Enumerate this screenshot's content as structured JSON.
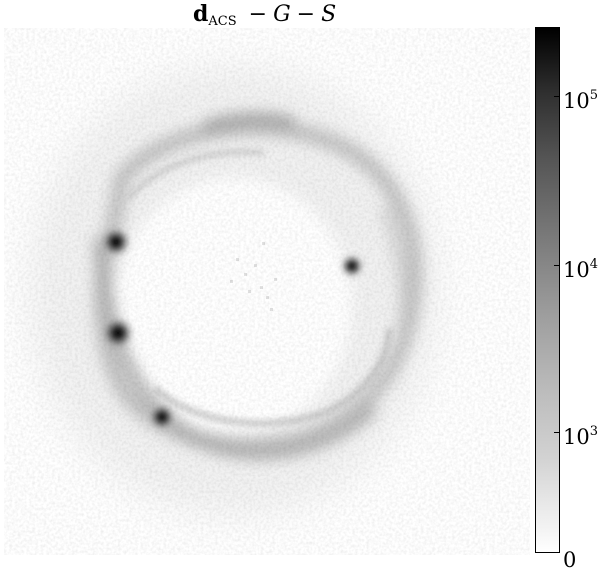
{
  "figure": {
    "title": {
      "bold_part": "d",
      "subscript": "ACS",
      "operator_1": "−",
      "term_1": "G",
      "operator_2": "−",
      "term_2": "S"
    }
  },
  "image_panel": {
    "description": "Gravitationally lensed Einstein ring with four bright point images on a white background, grayscale colormap"
  },
  "colorbar": {
    "scale": "log",
    "colormap": "grayscale (white to black)",
    "ticks": [
      {
        "base": "10",
        "exponent": "5"
      },
      {
        "base": "10",
        "exponent": "4"
      },
      {
        "base": "10",
        "exponent": "3"
      },
      {
        "base": "0",
        "exponent": ""
      }
    ]
  }
}
